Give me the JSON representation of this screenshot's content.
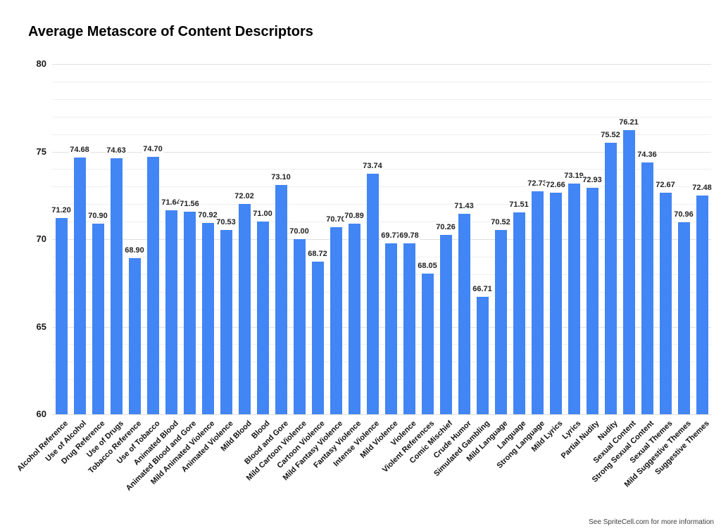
{
  "header": {
    "title": "Average Metascore of Content Descriptors"
  },
  "footer": {
    "note": "See SpriteCell.com for more information"
  },
  "chart_data": {
    "type": "bar",
    "title": "Average Metascore of Content Descriptors",
    "xlabel": "",
    "ylabel": "",
    "ylim": [
      60,
      80
    ],
    "y_ticks": [
      60,
      65,
      70,
      75,
      80
    ],
    "minor_grid_step": 1,
    "grid": true,
    "legend": "none",
    "bar_color": "#4285f4",
    "categories": [
      "Alcohol Reference",
      "Use of Alcohol",
      "Drug Reference",
      "Use of Drugs",
      "Tobacco Reference",
      "Use of Tobacco",
      "Animated Blood",
      "Animated Blood and Gore",
      "Mild Animated Violence",
      "Animated Violence",
      "Mild Blood",
      "Blood",
      "Blood and Gore",
      "Mild Cartoon Violence",
      "Cartoon Violence",
      "Mild Fantasy Violence",
      "Fantasy Violence",
      "Intense Violence",
      "Mild Violence",
      "Violence",
      "Violent References",
      "Comic Mischief",
      "Crude Humor",
      "Simulated Gambling",
      "Mild Language",
      "Language",
      "Strong Language",
      "Mild Lyrics",
      "Lyrics",
      "Partial Nudity",
      "Nudity",
      "Sexual Content",
      "Strong Sexual Content",
      "Sexual Themes",
      "Mild Suggestive Themes",
      "Suggestive Themes"
    ],
    "values": [
      71.2,
      74.68,
      70.9,
      74.63,
      68.9,
      74.7,
      71.64,
      71.56,
      70.92,
      70.53,
      72.02,
      71.0,
      73.1,
      70.0,
      68.72,
      70.7,
      70.89,
      73.74,
      69.77,
      69.78,
      68.05,
      70.26,
      71.43,
      66.71,
      70.52,
      71.51,
      72.73,
      72.66,
      73.19,
      72.93,
      75.52,
      76.21,
      74.36,
      72.67,
      70.96,
      72.48
    ],
    "value_labels": [
      "71.20",
      "74.68",
      "70.90",
      "74.63",
      "68.90",
      "74.70",
      "71.64",
      "71.56",
      "70.92",
      "70.53",
      "72.02",
      "71.00",
      "73.10",
      "70.00",
      "68.72",
      "70.70",
      "70.89",
      "73.74",
      "69.77",
      "69.78",
      "68.05",
      "70.26",
      "71.43",
      "66.71",
      "70.52",
      "71.51",
      "72.73",
      "72.66",
      "73.19",
      "72.93",
      "75.52",
      "76.21",
      "74.36",
      "72.67",
      "70.96",
      "72.48"
    ]
  }
}
